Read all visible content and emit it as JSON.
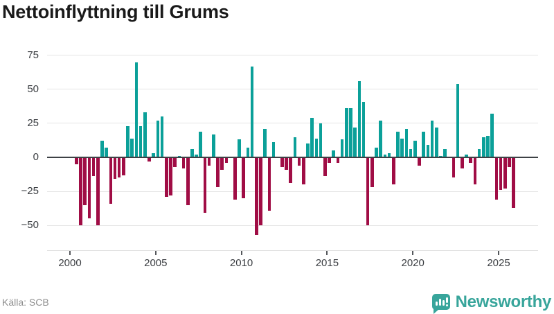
{
  "page": {
    "title": "Nettoinflyttning till Grums",
    "source": "Källa: SCB",
    "brand_name": "Newsworthy"
  },
  "colors": {
    "positive_bar": "#0ba099",
    "negative_bar": "#a00d45",
    "grid": "#e4e4e4",
    "zero_line": "#3d4145",
    "axis_text": "#3b3e42",
    "muted_text": "#8f8f8f",
    "title_text": "#1a1a1a",
    "brand_teal": "#38a59b"
  },
  "chart_data": {
    "type": "bar",
    "title": "Nettoinflyttning till Grums",
    "frequency": "quarterly",
    "start_period": "2000-Q2",
    "end_period": "2025-Q4",
    "xlabel": "",
    "ylabel": "",
    "grid": true,
    "legend": false,
    "x_tick_years": [
      2000,
      2005,
      2010,
      2015,
      2020,
      2025
    ],
    "y_ticks": [
      75,
      50,
      25,
      0,
      -25,
      -50
    ],
    "ylim": [
      -62,
      80
    ],
    "positive_color": "#0ba099",
    "negative_color": "#a00d45",
    "values": [
      -5,
      -50,
      -35,
      -45,
      -14,
      -50,
      12,
      7,
      -34,
      -16,
      -15,
      -13,
      23,
      14,
      70,
      23,
      33,
      -3,
      3,
      27,
      30,
      -29,
      -28,
      -7,
      1,
      -8,
      -35,
      6,
      2,
      19,
      -41,
      -6,
      17,
      -22,
      -9,
      -4,
      0,
      -31,
      13,
      -30,
      7,
      67,
      -57,
      -50,
      21,
      -39,
      11,
      0,
      -7,
      -9,
      -19,
      15,
      -6,
      -20,
      10,
      29,
      14,
      25,
      -14,
      -4,
      5,
      -4,
      13,
      36,
      36,
      22,
      56,
      41,
      -50,
      -22,
      7,
      27,
      2,
      3,
      -20,
      19,
      14,
      21,
      6,
      12,
      -6,
      19,
      9,
      27,
      22,
      1,
      6,
      0,
      -15,
      54,
      -8,
      2,
      -4,
      -20,
      6,
      15,
      16,
      32,
      -31,
      -24,
      -23,
      -7,
      -37
    ]
  }
}
